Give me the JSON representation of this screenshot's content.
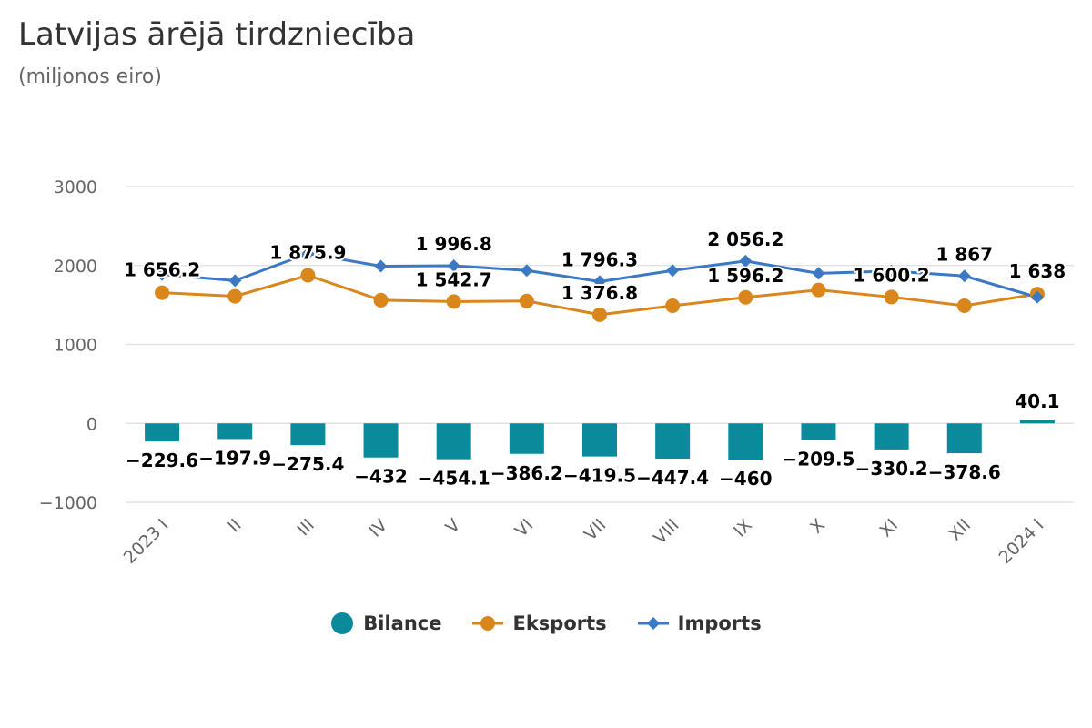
{
  "header": {
    "title": "Latvijas ārējā tirdzniecība",
    "subtitle": "(miljonos eiro)"
  },
  "colors": {
    "bilance": "#0b8a9c",
    "eksports": "#d9861c",
    "imports": "#3c78c3",
    "grid": "#e3e3e3"
  },
  "chart_data": {
    "type": "bar+line",
    "title": "Latvijas ārējā tirdzniecība",
    "subtitle": "(miljonos eiro)",
    "categories": [
      "2023 I",
      "II",
      "III",
      "IV",
      "V",
      "VI",
      "VII",
      "VIII",
      "IX",
      "X",
      "XI",
      "XII",
      "2024 I"
    ],
    "ylim": [
      -1000,
      3000
    ],
    "yticks": [
      -1000,
      0,
      1000,
      2000,
      3000
    ],
    "ytick_labels": [
      "−1000",
      "0",
      "1000",
      "2000",
      "3000"
    ],
    "grid": true,
    "legend_position": "bottom-center",
    "series": [
      {
        "name": "Bilance",
        "type": "bar",
        "values": [
          -229.6,
          -197.9,
          -275.4,
          -432,
          -454.1,
          -386.2,
          -419.5,
          -447.4,
          -460,
          -209.5,
          -330.2,
          -378.6,
          40.1
        ],
        "labels": [
          "−229.6",
          "−197.9",
          "−275.4",
          "−432",
          "−454.1",
          "−386.2",
          "−419.5",
          "−447.4",
          "−460",
          "−209.5",
          "−330.2",
          "−378.6",
          "40.1"
        ]
      },
      {
        "name": "Eksports",
        "type": "line",
        "values": [
          1656.2,
          1610,
          1875.9,
          1560,
          1542.7,
          1550,
          1376.8,
          1490,
          1596.2,
          1690,
          1600.2,
          1490,
          1638
        ],
        "labels": [
          "1 656.2",
          "",
          "1 875.9",
          "",
          "1 542.7",
          "",
          "1 376.8",
          "",
          "1 596.2",
          "",
          "1 600.2",
          "",
          "1 638"
        ],
        "labels_shown": [
          true,
          false,
          true,
          false,
          true,
          false,
          true,
          false,
          true,
          false,
          true,
          false,
          true
        ]
      },
      {
        "name": "Imports",
        "type": "line",
        "values": [
          1886,
          1808,
          2151,
          1992,
          1996.8,
          1936,
          1796.3,
          1937,
          2056.2,
          1900,
          1930,
          1867,
          1598
        ],
        "labels": [
          "",
          "",
          "",
          "",
          "1 996.8",
          "",
          "1 796.3",
          "",
          "2 056.2",
          "",
          "",
          "1 867",
          ""
        ],
        "labels_shown": [
          false,
          false,
          false,
          false,
          true,
          false,
          true,
          false,
          true,
          false,
          false,
          true,
          false
        ]
      }
    ]
  }
}
